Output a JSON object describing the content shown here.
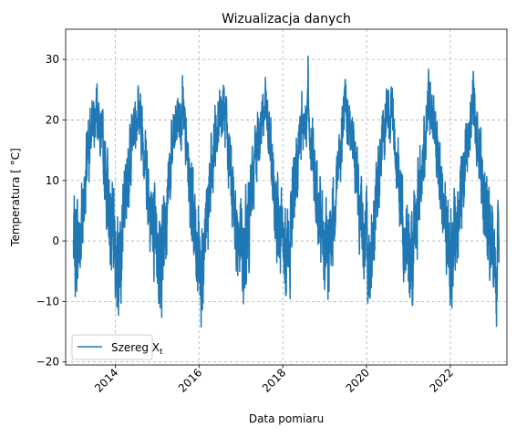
{
  "chart_data": {
    "type": "line",
    "title": "Wizualizacja danych",
    "xlabel": "Data pomiaru",
    "ylabel": "Temperatura [ °C]",
    "x_range": [
      "2013-01-01",
      "2023-03-01"
    ],
    "xlim": [
      "2012-10-25",
      "2023-05-10"
    ],
    "ylim": [
      -20.5,
      35
    ],
    "x_ticks": [
      "2014",
      "2016",
      "2018",
      "2020",
      "2022"
    ],
    "y_ticks": [
      -20,
      -10,
      0,
      10,
      20,
      30
    ],
    "grid": true,
    "legend_position": "lower-left",
    "series": [
      {
        "name": "Szereg X",
        "name_subscript": "t",
        "color": "#1f77b4",
        "description_points": [
          {
            "x": "2013-01-15",
            "y": 2
          },
          {
            "x": "2013-02-20",
            "y": -2
          },
          {
            "x": "2013-07-25",
            "y": 31
          },
          {
            "x": "2014-01-25",
            "y": -14
          },
          {
            "x": "2014-07-20",
            "y": 26
          },
          {
            "x": "2015-02-10",
            "y": -14
          },
          {
            "x": "2015-08-10",
            "y": 28.5
          },
          {
            "x": "2016-01-20",
            "y": -17.5
          },
          {
            "x": "2016-08-01",
            "y": 29
          },
          {
            "x": "2017-01-25",
            "y": -10
          },
          {
            "x": "2017-08-01",
            "y": 28.5
          },
          {
            "x": "2018-02-28",
            "y": -15
          },
          {
            "x": "2018-08-10",
            "y": 30
          },
          {
            "x": "2019-01-25",
            "y": -12
          },
          {
            "x": "2019-06-25",
            "y": 30
          },
          {
            "x": "2020-01-25",
            "y": -8
          },
          {
            "x": "2020-08-10",
            "y": 27
          },
          {
            "x": "2021-02-10",
            "y": -16
          },
          {
            "x": "2021-06-25",
            "y": 30.5
          },
          {
            "x": "2022-01-20",
            "y": -8
          },
          {
            "x": "2022-07-20",
            "y": 30.5
          },
          {
            "x": "2023-02-05",
            "y": -17.5
          },
          {
            "x": "2023-02-28",
            "y": 2
          }
        ]
      }
    ]
  }
}
